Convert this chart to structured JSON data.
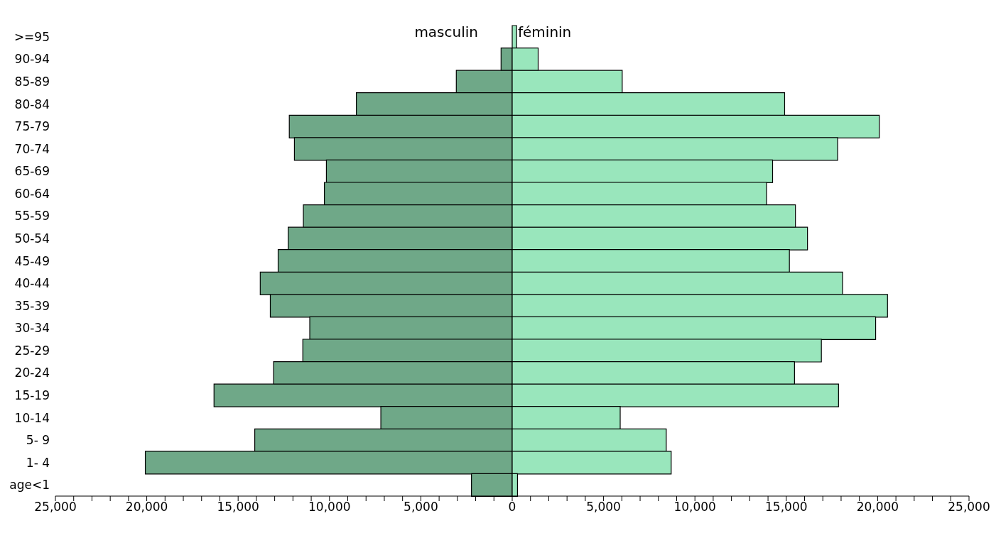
{
  "chart_data": {
    "type": "bar",
    "orientation": "horizontal",
    "legend": "top",
    "stacked": true,
    "categories": [
      ">=95",
      "90-94",
      "85-89",
      "80-84",
      "75-79",
      "70-74",
      "65-69",
      "60-64",
      "55-59",
      "50-54",
      "45-49",
      "40-44",
      "35-39",
      "30-34",
      "25-29",
      "20-24",
      "15-19",
      "10-14",
      "5- 9",
      "1- 4",
      "age<1"
    ],
    "series": [
      {
        "name": "masculin",
        "color": "#6fa888",
        "values": [
          null,
          -610,
          -3060,
          -8530,
          -12200,
          -11920,
          -10170,
          -10280,
          -11430,
          -12260,
          -12810,
          -13790,
          -13240,
          -11080,
          -11460,
          -13060,
          -16320,
          -7190,
          -14090,
          -20080,
          -2230
        ]
      },
      {
        "name": "féminin",
        "color": "#99e6bc",
        "values": [
          240,
          1420,
          6020,
          14910,
          20090,
          17810,
          14250,
          13920,
          15500,
          16160,
          15170,
          18080,
          20540,
          19890,
          16920,
          15450,
          17860,
          5910,
          8430,
          8700,
          290
        ]
      }
    ],
    "xlim": [
      -25000,
      25000
    ],
    "xticks": [
      {
        "value": -25000,
        "label": "25,000"
      },
      {
        "value": -24000,
        "label": null
      },
      {
        "value": -23000,
        "label": null
      },
      {
        "value": -22000,
        "label": null
      },
      {
        "value": -21000,
        "label": null
      },
      {
        "value": -20000,
        "label": "20,000"
      },
      {
        "value": -19000,
        "label": null
      },
      {
        "value": -18000,
        "label": null
      },
      {
        "value": -17000,
        "label": null
      },
      {
        "value": -16000,
        "label": null
      },
      {
        "value": -15000,
        "label": "15,000"
      },
      {
        "value": -14000,
        "label": null
      },
      {
        "value": -13000,
        "label": null
      },
      {
        "value": -12000,
        "label": null
      },
      {
        "value": -11000,
        "label": null
      },
      {
        "value": -10000,
        "label": "10,000"
      },
      {
        "value": -9000,
        "label": null
      },
      {
        "value": -8000,
        "label": null
      },
      {
        "value": -7000,
        "label": null
      },
      {
        "value": -6000,
        "label": null
      },
      {
        "value": -5000,
        "label": "5,000"
      },
      {
        "value": -4000,
        "label": null
      },
      {
        "value": -3000,
        "label": null
      },
      {
        "value": -2000,
        "label": null
      },
      {
        "value": -1000,
        "label": null
      },
      0,
      {
        "value": 1000,
        "label": null
      },
      {
        "value": 2000,
        "label": null
      },
      {
        "value": 3000,
        "label": null
      },
      {
        "value": 4000,
        "label": null
      },
      {
        "value": 5000,
        "label": "5,000"
      },
      {
        "value": 6000,
        "label": null
      },
      {
        "value": 7000,
        "label": null
      },
      {
        "value": 8000,
        "label": null
      },
      {
        "value": 9000,
        "label": null
      },
      {
        "value": 10000,
        "label": "10,000"
      },
      {
        "value": 11000,
        "label": null
      },
      {
        "value": 12000,
        "label": null
      },
      {
        "value": 13000,
        "label": null
      },
      {
        "value": 14000,
        "label": null
      },
      {
        "value": 15000,
        "label": "15,000"
      },
      {
        "value": 16000,
        "label": null
      },
      {
        "value": 17000,
        "label": null
      },
      {
        "value": 18000,
        "label": null
      },
      {
        "value": 19000,
        "label": null
      },
      {
        "value": 20000,
        "label": "20,000"
      },
      {
        "value": 21000,
        "label": null
      },
      {
        "value": 22000,
        "label": null
      },
      {
        "value": 23000,
        "label": null
      },
      {
        "value": 24000,
        "label": null
      },
      {
        "value": 25000,
        "label": "25,000"
      }
    ]
  }
}
